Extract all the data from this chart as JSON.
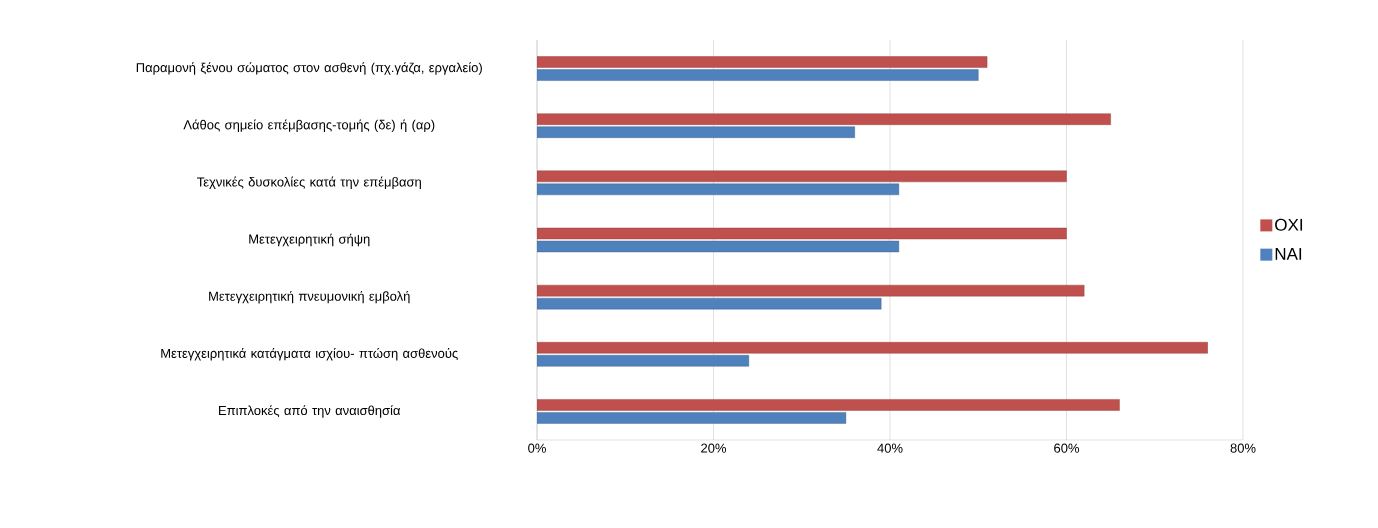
{
  "chart_data": {
    "type": "bar",
    "orientation": "horizontal",
    "categories": [
      "Παραμονή ξένου σώματος στον ασθενή (πχ.γάζα, εργαλείο)",
      "Λάθος σημείο επέμβασης-τομής  (δε) ή (αρ)",
      "Τεχνικές δυσκολίες κατά την επέμβαση",
      "Μετεγχειρητική σήψη",
      "Μετεγχειρητική πνευμονική εμβολή",
      "Μετεγχειρητικά κατάγματα ισχίου- πτώση ασθενούς",
      "Επιπλοκές από την αναισθησία"
    ],
    "series": [
      {
        "name": "ΝΑΙ",
        "color": "#4f81bd",
        "values": [
          50,
          36,
          41,
          41,
          39,
          24,
          35
        ]
      },
      {
        "name": "ΟΧΙ",
        "color": "#c0504d",
        "values": [
          51,
          65,
          60,
          60,
          62,
          76,
          66
        ]
      }
    ],
    "xlim": [
      0,
      80
    ],
    "xticks": [
      {
        "value": 0,
        "label": "0%"
      },
      {
        "value": 20,
        "label": "20%"
      },
      {
        "value": 40,
        "label": "40%"
      },
      {
        "value": 60,
        "label": "60%"
      },
      {
        "value": 80,
        "label": "80%"
      }
    ],
    "grid": "x",
    "legend": "right"
  }
}
